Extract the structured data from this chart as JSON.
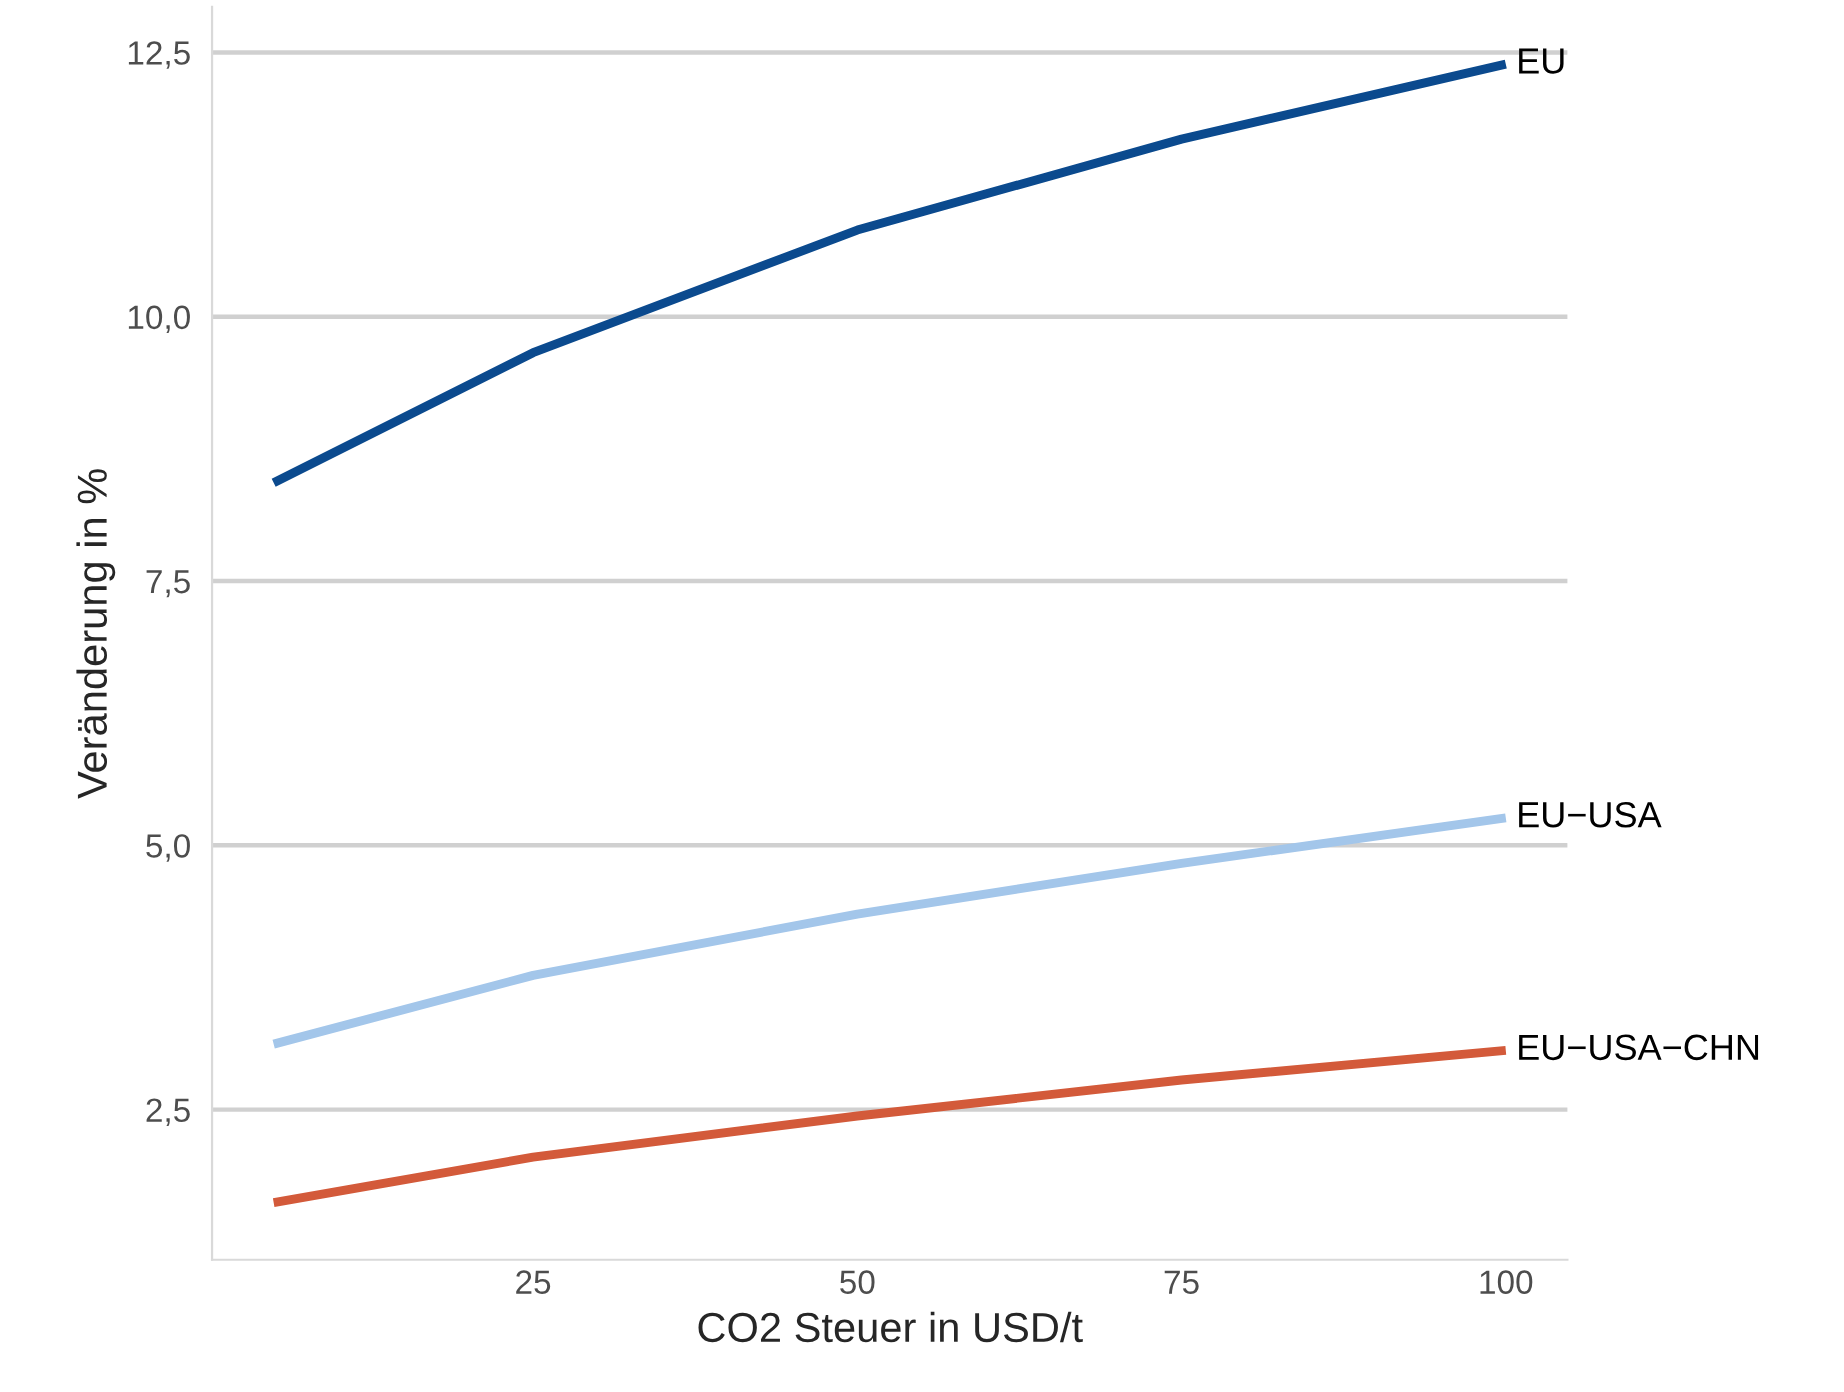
{
  "chart_data": {
    "type": "line",
    "xlabel": "CO2 Steuer in USD/t",
    "ylabel": "Veränderung in %",
    "x": [
      5,
      25,
      50,
      75,
      100
    ],
    "series": [
      {
        "name": "EU",
        "color": "#0b4a8e",
        "values": [
          8.43,
          9.66,
          10.82,
          11.68,
          12.39
        ]
      },
      {
        "name": "EU−USA",
        "color": "#a3c6ea",
        "values": [
          3.12,
          3.77,
          4.35,
          4.83,
          5.26
        ]
      },
      {
        "name": "EU−USA−CHN",
        "color": "#d35a3a",
        "values": [
          1.62,
          2.05,
          2.44,
          2.78,
          3.06
        ]
      }
    ],
    "xlim": [
      0.25,
      104.75
    ],
    "ylim": [
      1.08,
      12.93
    ],
    "xticks": [
      25,
      50,
      75,
      100
    ],
    "yticks": [
      {
        "value": 2.5,
        "label": "2,5"
      },
      {
        "value": 5.0,
        "label": "5,0"
      },
      {
        "value": 7.5,
        "label": "7,5"
      },
      {
        "value": 10.0,
        "label": "10,0"
      },
      {
        "value": 12.5,
        "label": "12,5"
      }
    ],
    "grid": "y",
    "legend": false,
    "marker": "none",
    "line_style": "solid"
  }
}
